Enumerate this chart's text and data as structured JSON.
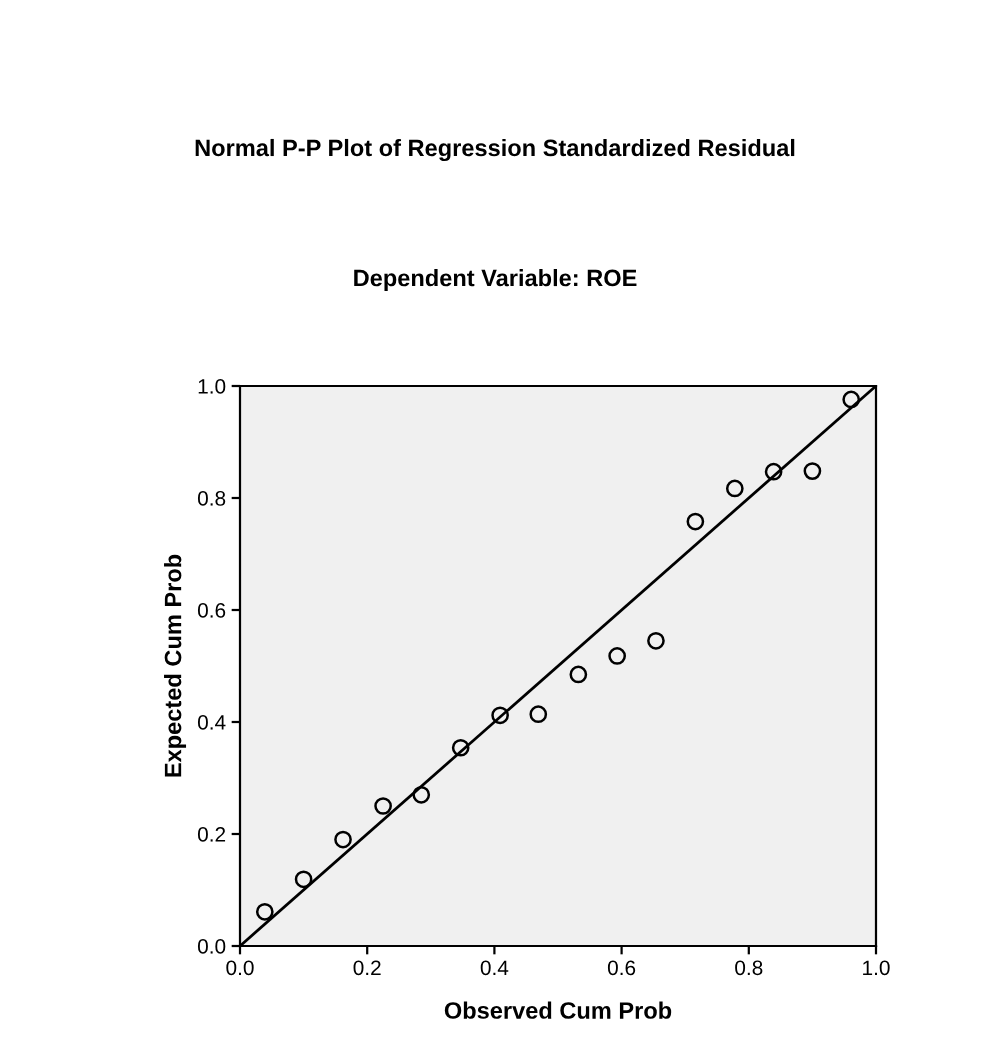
{
  "chart_data": {
    "type": "scatter",
    "title": "Normal P-P Plot of Regression Standardized Residual",
    "subtitle": "Dependent Variable: ROE",
    "xlabel": "Observed Cum Prob",
    "ylabel": "Expected Cum Prob",
    "xlim": [
      0,
      1
    ],
    "ylim": [
      0,
      1
    ],
    "xticks": [
      {
        "value": 0,
        "label": "0.0"
      },
      {
        "value": 0.2,
        "label": "0.2"
      },
      {
        "value": 0.4,
        "label": "0.4"
      },
      {
        "value": 0.6,
        "label": "0.6"
      },
      {
        "value": 0.8,
        "label": "0.8"
      },
      {
        "value": 1,
        "label": "1.0"
      }
    ],
    "yticks": [
      {
        "value": 0,
        "label": "0.0"
      },
      {
        "value": 0.2,
        "label": "0.2"
      },
      {
        "value": 0.4,
        "label": "0.4"
      },
      {
        "value": 0.6,
        "label": "0.6"
      },
      {
        "value": 0.8,
        "label": "0.8"
      },
      {
        "value": 1,
        "label": "1.0"
      }
    ],
    "grid": false,
    "legend": false,
    "series": [
      {
        "marker": "circle",
        "color": "#000000",
        "x": [
          0.039,
          0.1,
          0.162,
          0.225,
          0.285,
          0.347,
          0.409,
          0.469,
          0.532,
          0.593,
          0.654,
          0.716,
          0.778,
          0.839,
          0.9,
          0.961
        ],
        "values": [
          0.061,
          0.119,
          0.19,
          0.25,
          0.27,
          0.354,
          0.412,
          0.414,
          0.485,
          0.518,
          0.545,
          0.758,
          0.817,
          0.847,
          0.848,
          0.976
        ]
      },
      {
        "type": "line",
        "marker": "none",
        "color": "#000000",
        "x": [
          0,
          1
        ],
        "values": [
          0,
          1
        ]
      }
    ]
  }
}
